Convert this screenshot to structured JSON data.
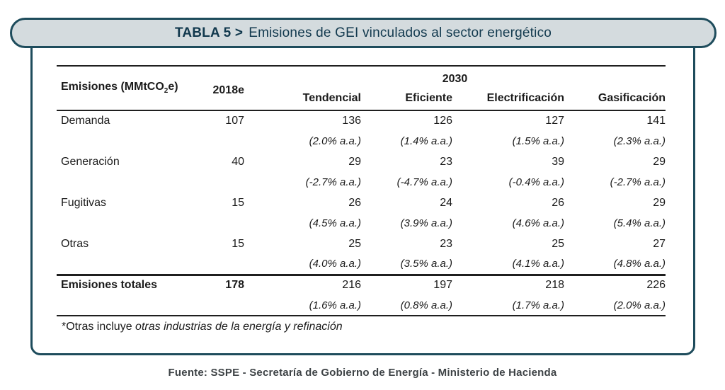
{
  "title": {
    "tag": "TABLA 5 >",
    "text": "Emisiones de GEI vinculados al sector energético"
  },
  "table": {
    "unit_label": {
      "prefix": "Emisiones (MMtCO",
      "sub": "2",
      "suffix": "e)"
    },
    "col_2018": "2018e",
    "col_2030": "2030",
    "scenarios": [
      "Tendencial",
      "Eficiente",
      "Electrificación",
      "Gasificación"
    ],
    "rows": [
      {
        "label": "Demanda",
        "v2018": "107",
        "values": [
          "136",
          "126",
          "127",
          "141"
        ],
        "pcts": [
          "(2.0% a.a.)",
          "(1.4% a.a.)",
          "(1.5% a.a.)",
          "(2.3% a.a.)"
        ]
      },
      {
        "label": "Generación",
        "v2018": "40",
        "values": [
          "29",
          "23",
          "39",
          "29"
        ],
        "pcts": [
          "(-2.7% a.a.)",
          "(-4.7% a.a.)",
          "(-0.4% a.a.)",
          "(-2.7% a.a.)"
        ]
      },
      {
        "label": "Fugitivas",
        "v2018": "15",
        "values": [
          "26",
          "24",
          "26",
          "29"
        ],
        "pcts": [
          "(4.5% a.a.)",
          "(3.9% a.a.)",
          "(4.6% a.a.)",
          "(5.4% a.a.)"
        ]
      },
      {
        "label": "Otras",
        "v2018": "15",
        "values": [
          "25",
          "23",
          "25",
          "27"
        ],
        "pcts": [
          "(4.0% a.a.)",
          "(3.5% a.a.)",
          "(4.1% a.a.)",
          "(4.8% a.a.)"
        ]
      },
      {
        "label": "Emisiones totales",
        "v2018": "178",
        "values": [
          "216",
          "197",
          "218",
          "226"
        ],
        "pcts": [
          "(1.6% a.a.)",
          "(0.8% a.a.)",
          "(1.7% a.a.)",
          "(2.0% a.a.)"
        ]
      }
    ],
    "footnote_normal": "*Otras incluye ",
    "footnote_italic": "otras industrias de la energía y refinación"
  },
  "footer": "Fuente: SSPE - Secretaría de Gobierno de Energía - Ministerio de Hacienda",
  "colors": {
    "accent_teal_border": "#1e4c5c",
    "title_text": "#12394e",
    "pill_background": "#d4dbde",
    "table_rule": "#1f1f1f",
    "body_text": "#1b1b1b",
    "footer_text": "#3e4346"
  }
}
